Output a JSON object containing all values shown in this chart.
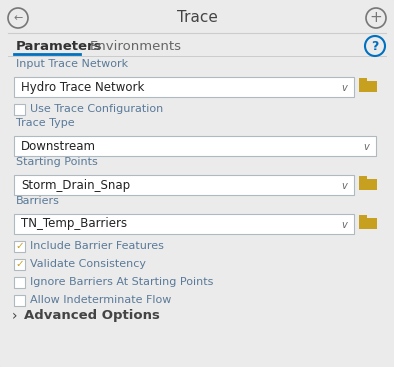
{
  "title": "Trace",
  "bg_color": "#ebebeb",
  "panel_bg": "#ebebeb",
  "title_color": "#444444",
  "tab_active": "Parameters",
  "tab_inactive": "Environments",
  "tab_underline_color": "#0070c0",
  "tab_active_color": "#333333",
  "tab_inactive_color": "#666666",
  "label_color": "#5a7a99",
  "field_bg": "#ffffff",
  "field_border": "#b0b8c0",
  "field_text_color": "#222222",
  "dropdown_arrow_color": "#666666",
  "folder_color": "#c8a020",
  "check_color": "#c8a020",
  "checkbox_text_color": "#5a7a99",
  "section_color": "#444444",
  "help_circle_color": "#0070c0",
  "nav_circle_color": "#777777",
  "advanced_label": "Advanced Options",
  "checkboxes": [
    {
      "label": "Include Barrier Features",
      "checked": true
    },
    {
      "label": "Validate Consistency",
      "checked": true
    },
    {
      "label": "Ignore Barriers At Starting Points",
      "checked": false
    },
    {
      "label": "Allow Indeterminate Flow",
      "checked": false
    }
  ]
}
